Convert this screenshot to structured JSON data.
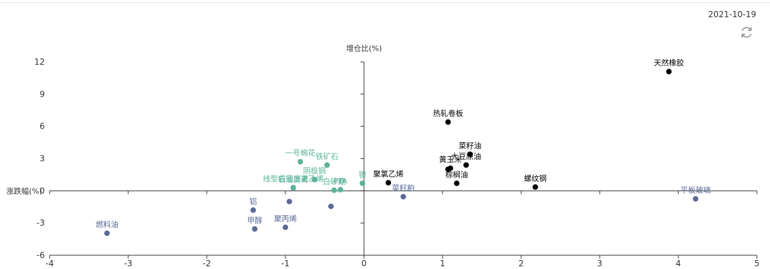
{
  "header": {
    "date": "2021-10-19"
  },
  "colors": {
    "up": "#d13a3a",
    "green": "#5ab39a",
    "blue": "#5b6a96",
    "axis": "#333333"
  },
  "chart_data": {
    "type": "scatter",
    "xlabel": "涨跌幅(%)",
    "ylabel": "增仓比(%)",
    "xlim": [
      -4,
      5
    ],
    "ylim": [
      -6,
      12
    ],
    "xticks": [
      "-4",
      "-3",
      "-2",
      "-1",
      "0",
      "1",
      "2",
      "3",
      "4",
      "5"
    ],
    "yticks": [
      "-6",
      "-3",
      "0",
      "3",
      "6",
      "9",
      "12"
    ],
    "series": [
      {
        "group": "red",
        "points": [
          {
            "label": "天然橡胶",
            "x": 3.88,
            "y": 11.1
          },
          {
            "label": "热轧卷板",
            "x": 1.07,
            "y": 6.4
          },
          {
            "label": "菜籽油",
            "x": 1.35,
            "y": 3.4
          },
          {
            "label": "大豆原油",
            "x": 1.3,
            "y": 2.4
          },
          {
            "label": "黄玉米",
            "x": 1.1,
            "y": 2.1
          },
          {
            "label": "",
            "x": 1.07,
            "y": 2.0
          },
          {
            "label": "棕榈油",
            "x": 1.18,
            "y": 0.7
          },
          {
            "label": "聚氯乙烯",
            "x": 0.31,
            "y": 0.75
          },
          {
            "label": "螺纹钢",
            "x": 2.18,
            "y": 0.35
          }
        ]
      },
      {
        "group": "green",
        "points": [
          {
            "label": "一号棉花",
            "x": -0.81,
            "y": 2.7
          },
          {
            "label": "铁矿石",
            "x": -0.47,
            "y": 2.4
          },
          {
            "label": "阴极铜",
            "x": -0.63,
            "y": 1.05
          },
          {
            "label": "线型低密度聚乙烯",
            "x": -0.9,
            "y": 0.3
          },
          {
            "label": "石油沥青",
            "x": -0.9,
            "y": 0.25
          },
          {
            "label": "PTA",
            "x": -0.3,
            "y": 0.1
          },
          {
            "label": "白砂糖",
            "x": -0.38,
            "y": 0.05
          },
          {
            "label": "镍",
            "x": -0.02,
            "y": 0.7
          }
        ]
      },
      {
        "group": "blue",
        "points": [
          {
            "label": "平板玻璃",
            "x": 4.22,
            "y": -0.75
          },
          {
            "label": "菜籽粕",
            "x": 0.5,
            "y": -0.55
          },
          {
            "label": "",
            "x": -0.95,
            "y": -1.0
          },
          {
            "label": "",
            "x": -0.42,
            "y": -1.45
          },
          {
            "label": "铝",
            "x": -1.41,
            "y": -1.8
          },
          {
            "label": "聚丙烯",
            "x": -1.0,
            "y": -3.4
          },
          {
            "label": "甲醇",
            "x": -1.39,
            "y": -3.55
          },
          {
            "label": "燃料油",
            "x": -3.27,
            "y": -3.95
          }
        ]
      }
    ]
  }
}
